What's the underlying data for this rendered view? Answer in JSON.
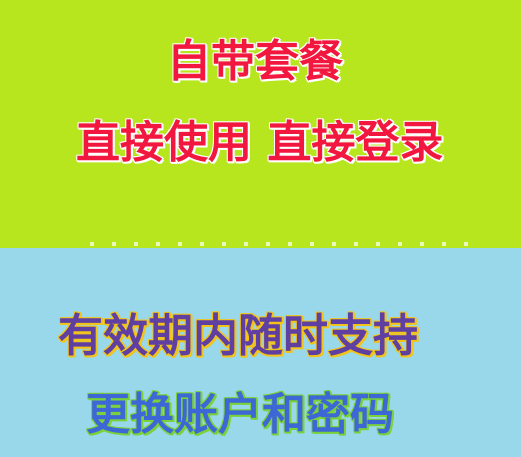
{
  "colors": {
    "top_background": "#b7e61f",
    "bottom_background": "#99d8ea",
    "red_text": "#f2173f",
    "purple_text": "#5f3fa2",
    "blue_text": "#3d66d6"
  },
  "lines": [
    "自带套餐",
    "直接使用 直接登录",
    "有效期内随时支持",
    "更换账户和密码"
  ]
}
